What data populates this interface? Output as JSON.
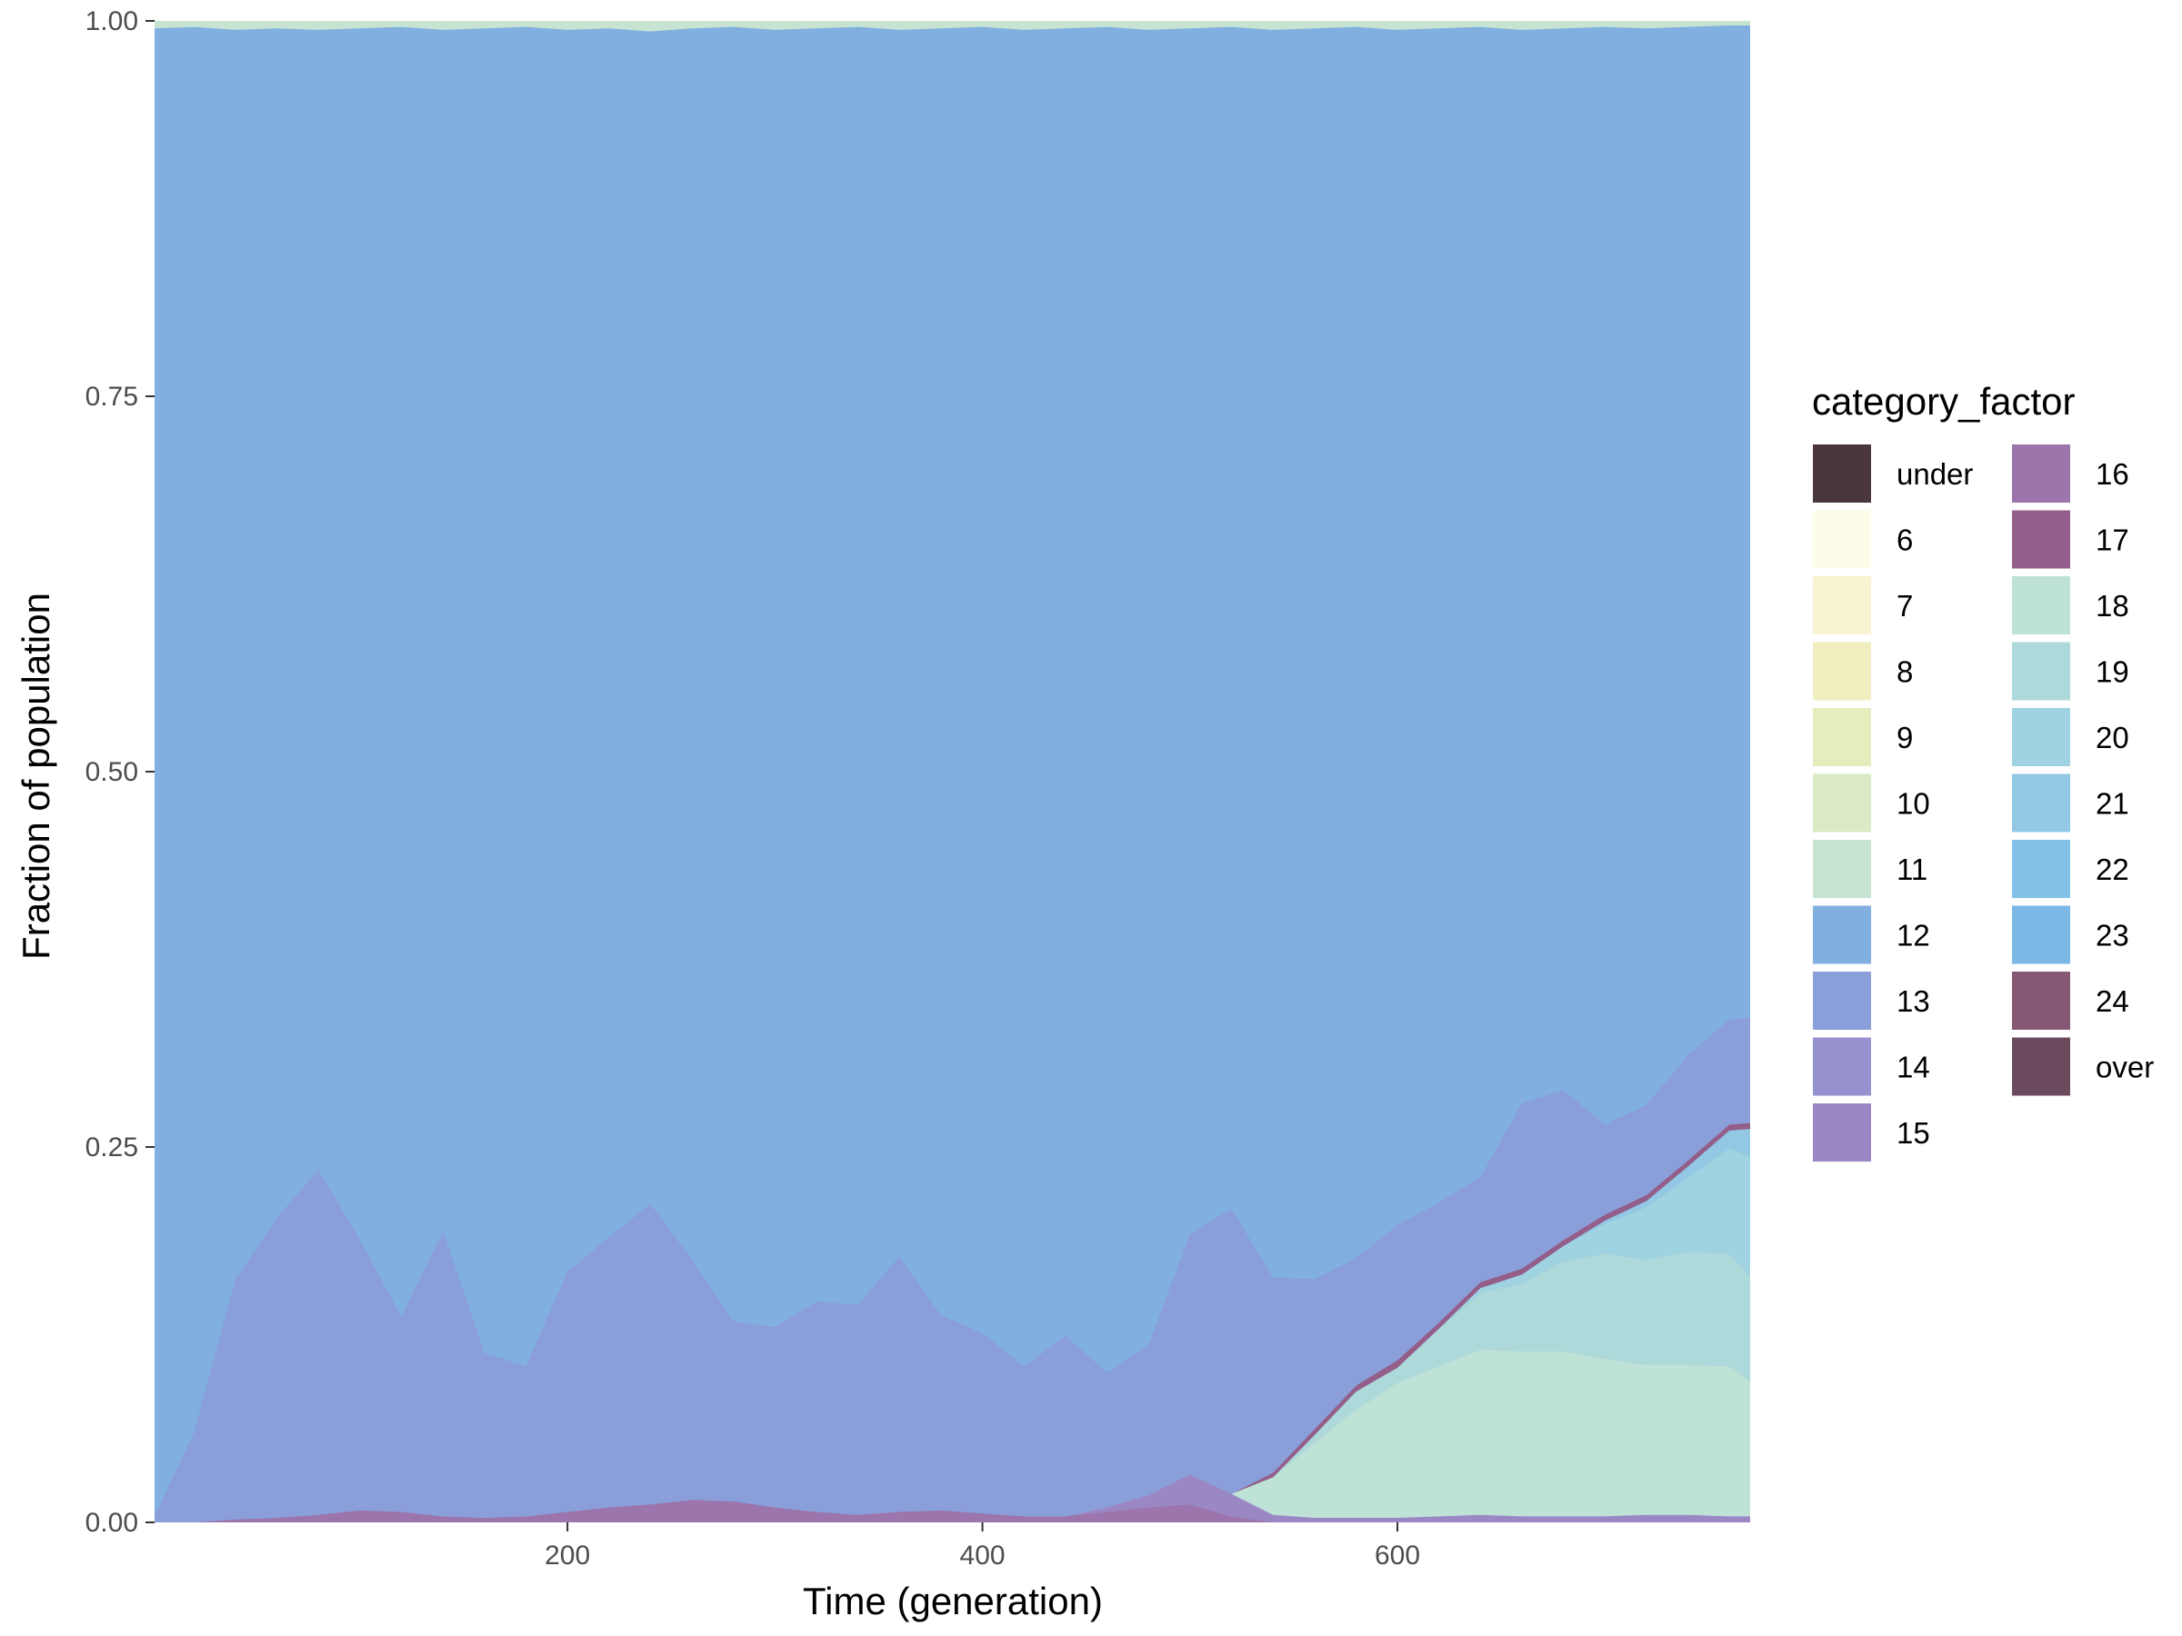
{
  "chart_data": {
    "type": "area",
    "stacked": true,
    "normalized": true,
    "xlabel": "Time (generation)",
    "ylabel": "Fraction of population",
    "xlim": [
      1,
      770
    ],
    "ylim": [
      0,
      1
    ],
    "xticks": [
      200,
      400,
      600
    ],
    "yticks": [
      0,
      0.25,
      0.5,
      0.75,
      1
    ],
    "ytick_labels": [
      "0.00",
      "0.25",
      "0.50",
      "0.75",
      "1.00"
    ],
    "grid": false,
    "legend": {
      "title": "category_factor",
      "placement": "right",
      "columns": 2,
      "entries": [
        {
          "label": "under",
          "color": "#4a363d"
        },
        {
          "label": "6",
          "color": "#fdfbea"
        },
        {
          "label": "7",
          "color": "#f8f4d2"
        },
        {
          "label": "8",
          "color": "#f1efbf"
        },
        {
          "label": "9",
          "color": "#e6edbd"
        },
        {
          "label": "10",
          "color": "#d9eac5"
        },
        {
          "label": "11",
          "color": "#c7e4d2"
        },
        {
          "label": "12",
          "color": "#80afe0"
        },
        {
          "label": "13",
          "color": "#8a9fda"
        },
        {
          "label": "14",
          "color": "#9692d0"
        },
        {
          "label": "15",
          "color": "#9b87c4"
        },
        {
          "label": "16",
          "color": "#9b75ab"
        },
        {
          "label": "17",
          "color": "#935f8a"
        },
        {
          "label": "18",
          "color": "#bfe2d7"
        },
        {
          "label": "19",
          "color": "#aed9da"
        },
        {
          "label": "20",
          "color": "#a0d3e1"
        },
        {
          "label": "21",
          "color": "#92c8e4"
        },
        {
          "label": "22",
          "color": "#84c2e8"
        },
        {
          "label": "23",
          "color": "#7bb8e6"
        },
        {
          "label": "24",
          "color": "#875874"
        },
        {
          "label": "over",
          "color": "#6b4a5d"
        }
      ]
    },
    "x": [
      1,
      20,
      40,
      60,
      80,
      100,
      120,
      140,
      160,
      180,
      200,
      220,
      240,
      260,
      280,
      300,
      320,
      340,
      360,
      380,
      400,
      420,
      440,
      460,
      480,
      500,
      520,
      540,
      560,
      580,
      600,
      620,
      640,
      660,
      680,
      700,
      720,
      740,
      760,
      770
    ],
    "series": [
      {
        "name": "16",
        "values": [
          0,
          0,
          0.002,
          0.003,
          0.005,
          0.008,
          0.007,
          0.004,
          0.003,
          0.004,
          0.007,
          0.01,
          0.012,
          0.015,
          0.014,
          0.01,
          0.007,
          0.005,
          0.007,
          0.008,
          0.006,
          0.004,
          0.004,
          0.007,
          0.01,
          0.012,
          0.004,
          0,
          0,
          0,
          0,
          0,
          0,
          0,
          0,
          0,
          0,
          0,
          0,
          0
        ]
      },
      {
        "name": "15",
        "values": [
          0,
          0,
          0,
          0,
          0,
          0,
          0,
          0,
          0,
          0,
          0,
          0,
          0,
          0,
          0,
          0,
          0,
          0,
          0,
          0,
          0,
          0,
          0,
          0.003,
          0.008,
          0.02,
          0.015,
          0.005,
          0.003,
          0.003,
          0.003,
          0.004,
          0.005,
          0.004,
          0.004,
          0.004,
          0.005,
          0.005,
          0.004,
          0.004
        ]
      },
      {
        "name": "18",
        "values": [
          0,
          0,
          0,
          0,
          0,
          0,
          0,
          0,
          0,
          0,
          0,
          0,
          0,
          0,
          0,
          0,
          0,
          0,
          0,
          0,
          0,
          0,
          0,
          0,
          0,
          0,
          0,
          0.025,
          0.05,
          0.072,
          0.09,
          0.1,
          0.11,
          0.11,
          0.11,
          0.105,
          0.1,
          0.1,
          0.1,
          0.09
        ]
      },
      {
        "name": "19",
        "values": [
          0,
          0,
          0,
          0,
          0,
          0,
          0,
          0,
          0,
          0,
          0,
          0,
          0,
          0,
          0,
          0,
          0,
          0,
          0,
          0,
          0,
          0,
          0,
          0,
          0,
          0,
          0,
          0,
          0.005,
          0.012,
          0.01,
          0.025,
          0.038,
          0.045,
          0.06,
          0.07,
          0.07,
          0.075,
          0.075,
          0.07
        ]
      },
      {
        "name": "20",
        "values": [
          0,
          0,
          0,
          0,
          0,
          0,
          0,
          0,
          0,
          0,
          0,
          0,
          0,
          0,
          0,
          0,
          0,
          0,
          0,
          0,
          0,
          0,
          0,
          0,
          0,
          0,
          0,
          0,
          0,
          0,
          0,
          0,
          0.003,
          0.006,
          0.01,
          0.02,
          0.035,
          0.05,
          0.07,
          0.08
        ]
      },
      {
        "name": "21",
        "values": [
          0,
          0,
          0,
          0,
          0,
          0,
          0,
          0,
          0,
          0,
          0,
          0,
          0,
          0,
          0,
          0,
          0,
          0,
          0,
          0,
          0,
          0,
          0,
          0,
          0,
          0,
          0,
          0,
          0,
          0,
          0,
          0,
          0,
          0,
          0,
          0.002,
          0.004,
          0.007,
          0.012,
          0.018
        ]
      },
      {
        "name": "17",
        "values": [
          0,
          0,
          0,
          0,
          0,
          0,
          0,
          0,
          0,
          0,
          0,
          0,
          0,
          0,
          0,
          0,
          0,
          0,
          0,
          0,
          0,
          0,
          0,
          0,
          0,
          0,
          0,
          0.003,
          0.004,
          0.004,
          0.005,
          0.004,
          0.004,
          0.004,
          0.004,
          0.004,
          0.004,
          0.004,
          0.004,
          0.004
        ]
      },
      {
        "name": "13",
        "values": [
          0.004,
          0.06,
          0.16,
          0.2,
          0.23,
          0.18,
          0.13,
          0.19,
          0.11,
          0.1,
          0.16,
          0.18,
          0.2,
          0.16,
          0.12,
          0.12,
          0.14,
          0.14,
          0.17,
          0.13,
          0.12,
          0.1,
          0.12,
          0.09,
          0.1,
          0.16,
          0.19,
          0.13,
          0.1,
          0.085,
          0.09,
          0.08,
          0.07,
          0.11,
          0.1,
          0.06,
          0.06,
          0.07,
          0.07,
          0.07
        ]
      },
      {
        "name": "11",
        "values": [
          0.005,
          0.004,
          0.006,
          0.005,
          0.006,
          0.005,
          0.004,
          0.006,
          0.005,
          0.004,
          0.006,
          0.005,
          0.007,
          0.005,
          0.004,
          0.006,
          0.005,
          0.004,
          0.006,
          0.005,
          0.004,
          0.006,
          0.005,
          0.004,
          0.006,
          0.005,
          0.004,
          0.006,
          0.005,
          0.004,
          0.006,
          0.005,
          0.004,
          0.006,
          0.005,
          0.004,
          0.005,
          0.004,
          0.003,
          0.003
        ]
      }
    ],
    "remainder_series": "12"
  }
}
